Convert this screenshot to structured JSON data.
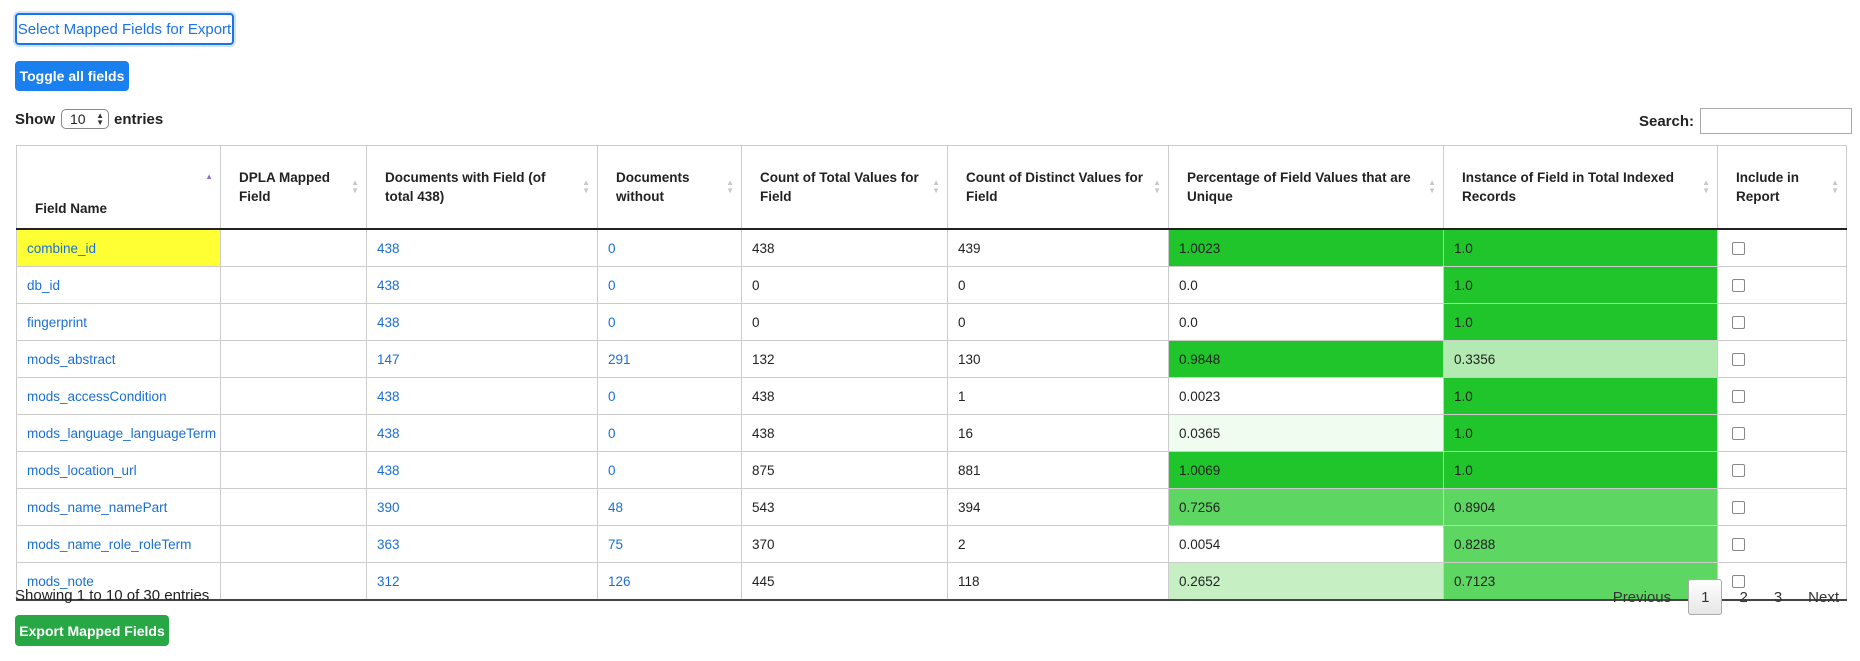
{
  "buttons": {
    "select_mapped": "Select Mapped Fields for Export",
    "toggle_all": "Toggle all fields",
    "export_mapped": "Export Mapped Fields"
  },
  "length": {
    "show_label": "Show",
    "value": "10",
    "entries_label": "entries"
  },
  "search": {
    "label": "Search:",
    "value": ""
  },
  "table": {
    "headers": [
      "Field Name",
      "DPLA Mapped Field",
      "Documents with Field (of total 438)",
      "Documents without",
      "Count of Total Values for Field",
      "Count of Distinct Values for Field",
      "Percentage of Field Values that are Unique",
      "Instance of Field in Total Indexed Records",
      "Include in Report"
    ],
    "rows": [
      {
        "field": "combine_id",
        "dpla": "",
        "with": "438",
        "without": "0",
        "total": "438",
        "distinct": "439",
        "unique": "1.0023",
        "instance": "1.0"
      },
      {
        "field": "db_id",
        "dpla": "",
        "with": "438",
        "without": "0",
        "total": "0",
        "distinct": "0",
        "unique": "0.0",
        "instance": "1.0"
      },
      {
        "field": "fingerprint",
        "dpla": "",
        "with": "438",
        "without": "0",
        "total": "0",
        "distinct": "0",
        "unique": "0.0",
        "instance": "1.0"
      },
      {
        "field": "mods_abstract",
        "dpla": "",
        "with": "147",
        "without": "291",
        "total": "132",
        "distinct": "130",
        "unique": "0.9848",
        "instance": "0.3356"
      },
      {
        "field": "mods_accessCondition",
        "dpla": "",
        "with": "438",
        "without": "0",
        "total": "438",
        "distinct": "1",
        "unique": "0.0023",
        "instance": "1.0"
      },
      {
        "field": "mods_language_languageTerm",
        "dpla": "",
        "with": "438",
        "without": "0",
        "total": "438",
        "distinct": "16",
        "unique": "0.0365",
        "instance": "1.0"
      },
      {
        "field": "mods_location_url",
        "dpla": "",
        "with": "438",
        "without": "0",
        "total": "875",
        "distinct": "881",
        "unique": "1.0069",
        "instance": "1.0"
      },
      {
        "field": "mods_name_namePart",
        "dpla": "",
        "with": "390",
        "without": "48",
        "total": "543",
        "distinct": "394",
        "unique": "0.7256",
        "instance": "0.8904"
      },
      {
        "field": "mods_name_role_roleTerm",
        "dpla": "",
        "with": "363",
        "without": "75",
        "total": "370",
        "distinct": "2",
        "unique": "0.0054",
        "instance": "0.8288"
      },
      {
        "field": "mods_note",
        "dpla": "",
        "with": "312",
        "without": "126",
        "total": "445",
        "distinct": "118",
        "unique": "0.2652",
        "instance": "0.7123"
      }
    ]
  },
  "info": "Showing 1 to 10 of 30 entries",
  "pagination": {
    "previous": "Previous",
    "pages": [
      "1",
      "2",
      "3"
    ],
    "current": "1",
    "next": "Next"
  }
}
